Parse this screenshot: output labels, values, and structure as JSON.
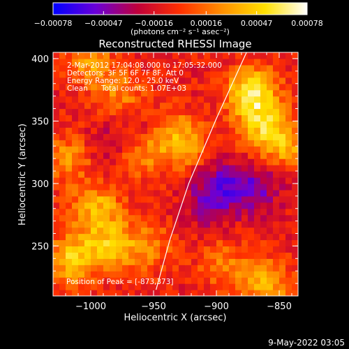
{
  "chart_data": {
    "type": "heatmap",
    "title": "Reconstructed RHESSI Image",
    "xlabel": "Heliocentric X (arcsec)",
    "ylabel": "Heliocentric Y (arcsec)",
    "xlim": [
      -1030,
      -835
    ],
    "ylim": [
      210,
      405
    ],
    "x_ticks": [
      -1000,
      -950,
      -900,
      -850
    ],
    "x_tick_labels": [
      "−1000",
      "−950",
      "−900",
      "−850"
    ],
    "y_ticks": [
      250,
      300,
      350,
      400
    ],
    "y_tick_labels": [
      "250",
      "300",
      "350",
      "400"
    ],
    "colorbar": {
      "range": [
        -0.00078,
        0.00078
      ],
      "ticks": [
        -0.00078,
        -0.00047,
        -0.00016,
        0.00016,
        0.00047,
        0.00078
      ],
      "tick_labels": [
        "−0.00078",
        "−0.00047",
        "−0.00016",
        "0.00016",
        "0.00047",
        "0.00078"
      ],
      "unit_label": "(photons cm⁻² s⁻¹ asec⁻²)",
      "colors": [
        "#0000ff",
        "#6a00d8",
        "#c0003a",
        "#ff3000",
        "#ff9000",
        "#ffe000",
        "#ffffff"
      ]
    },
    "annotations": {
      "time_range": "2-Mar-2012 17:04:08.000 to 17:05:32.000",
      "detectors": "Detectors: 3F 5F 6F 7F 8F, Att 0",
      "energy_range": "Energy Range: 12.0 - 25.0 keV",
      "method": "Clean",
      "total_counts": "Total counts: 1.07E+03",
      "peak": "Position of Peak = [-873,373]"
    },
    "limb_curve": [
      [
        -876,
        405
      ],
      [
        -900,
        352
      ],
      [
        -922,
        300
      ],
      [
        -937,
        255
      ],
      [
        -948,
        215
      ]
    ],
    "hot_regions": [
      {
        "x": -872,
        "y": 373,
        "level": 0.95
      },
      {
        "x": -862,
        "y": 345,
        "level": 0.6
      },
      {
        "x": -845,
        "y": 330,
        "level": 0.5
      },
      {
        "x": -1015,
        "y": 240,
        "level": 0.7
      },
      {
        "x": -995,
        "y": 280,
        "level": 0.6
      },
      {
        "x": -985,
        "y": 250,
        "level": 0.55
      },
      {
        "x": -955,
        "y": 250,
        "level": 0.4
      },
      {
        "x": -1000,
        "y": 395,
        "level": 0.45
      },
      {
        "x": -975,
        "y": 370,
        "level": 0.4
      },
      {
        "x": -960,
        "y": 325,
        "level": 0.5
      },
      {
        "x": -940,
        "y": 345,
        "level": 0.4
      },
      {
        "x": -925,
        "y": 330,
        "level": 0.45
      },
      {
        "x": -860,
        "y": 220,
        "level": 0.6
      },
      {
        "x": -895,
        "y": 235,
        "level": 0.35
      },
      {
        "x": -1018,
        "y": 320,
        "level": 0.45
      }
    ],
    "cold_regions": [
      {
        "x": -955,
        "y": 345,
        "level": -0.35
      },
      {
        "x": -895,
        "y": 300,
        "level": -0.4
      },
      {
        "x": -868,
        "y": 297,
        "level": -0.45
      },
      {
        "x": -905,
        "y": 285,
        "level": -0.35
      },
      {
        "x": -985,
        "y": 330,
        "level": -0.25
      }
    ]
  },
  "footer": {
    "date": "9-May-2022 03:05"
  }
}
